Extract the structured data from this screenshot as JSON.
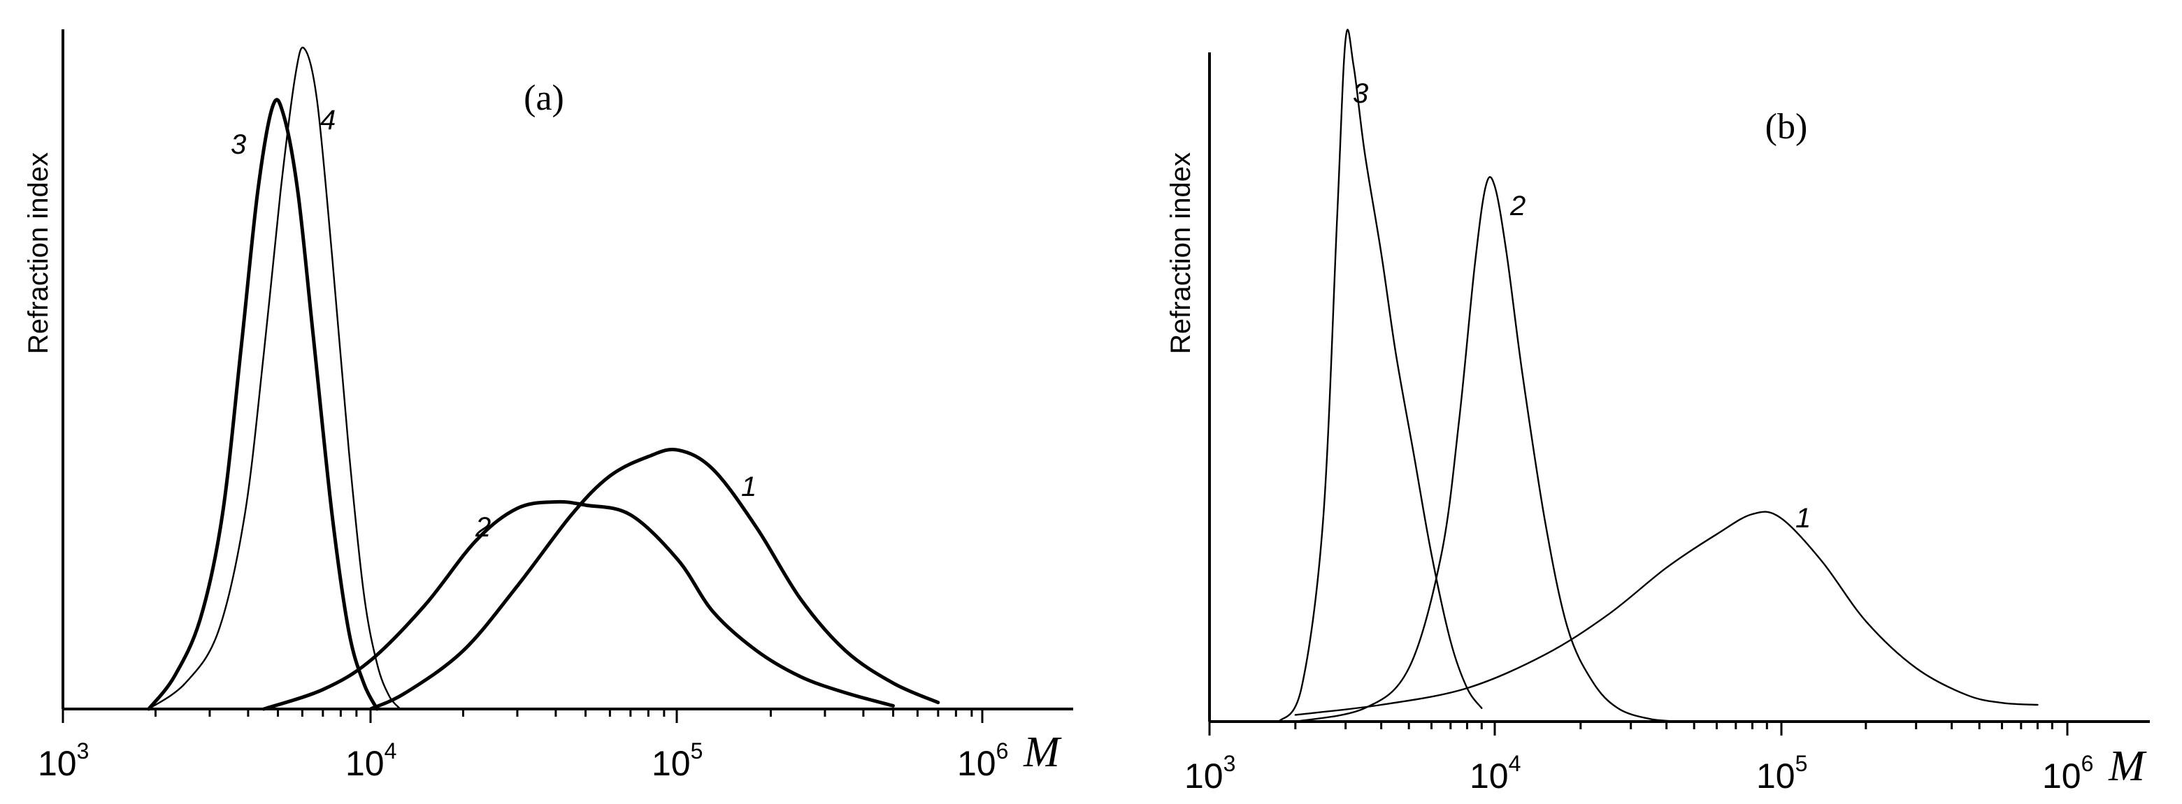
{
  "chart_data": [
    {
      "type": "line",
      "panel_label": "(a)",
      "ylabel": "Refraction index",
      "xlabel": "M",
      "xscale": "log",
      "xlim": [
        1000,
        2000000
      ],
      "ylim": [
        0,
        1.05
      ],
      "x_ticks": [
        {
          "base": "10",
          "exp": "3"
        },
        {
          "base": "10",
          "exp": "4"
        },
        {
          "base": "10",
          "exp": "5"
        },
        {
          "base": "10",
          "exp": "6"
        }
      ],
      "series": [
        {
          "name": "1",
          "weight": "bold",
          "x": [
            10000,
            13000,
            20000,
            30000,
            45000,
            60000,
            80000,
            100000,
            130000,
            180000,
            250000,
            350000,
            500000,
            700000
          ],
          "y": [
            0,
            0.025,
            0.09,
            0.19,
            0.3,
            0.36,
            0.39,
            0.4,
            0.37,
            0.28,
            0.17,
            0.09,
            0.04,
            0.01
          ]
        },
        {
          "name": "2",
          "weight": "bold",
          "x": [
            4500,
            7000,
            10000,
            15000,
            22000,
            30000,
            40000,
            50000,
            70000,
            100000,
            130000,
            180000,
            250000,
            350000,
            500000
          ],
          "y": [
            0,
            0.03,
            0.075,
            0.16,
            0.26,
            0.31,
            0.32,
            0.315,
            0.3,
            0.23,
            0.15,
            0.09,
            0.05,
            0.025,
            0.005
          ]
        },
        {
          "name": "3",
          "weight": "bold",
          "x": [
            1900,
            2300,
            2800,
            3300,
            3800,
            4300,
            4800,
            5200,
            5800,
            6500,
            7500,
            8500,
            9500,
            10500
          ],
          "y": [
            0,
            0.05,
            0.14,
            0.3,
            0.56,
            0.8,
            0.93,
            0.92,
            0.8,
            0.58,
            0.3,
            0.12,
            0.04,
            0
          ]
        },
        {
          "name": "4",
          "weight": "thin",
          "x": [
            1900,
            2500,
            3200,
            3900,
            4500,
            5100,
            5700,
            6100,
            6700,
            7500,
            8500,
            9500,
            10500,
            11500,
            12500
          ],
          "y": [
            0,
            0.04,
            0.12,
            0.3,
            0.55,
            0.8,
            0.98,
            1.02,
            0.94,
            0.7,
            0.4,
            0.18,
            0.07,
            0.02,
            0
          ]
        }
      ]
    },
    {
      "type": "line",
      "panel_label": "(b)",
      "ylabel": "Refraction index",
      "xlabel": "M",
      "xscale": "log",
      "xlim": [
        1000,
        2000000
      ],
      "ylim": [
        0,
        1.0
      ],
      "x_ticks": [
        {
          "base": "10",
          "exp": "3"
        },
        {
          "base": "10",
          "exp": "4"
        },
        {
          "base": "10",
          "exp": "5"
        },
        {
          "base": "10",
          "exp": "6"
        }
      ],
      "series": [
        {
          "name": "1",
          "weight": "thin",
          "x": [
            2000,
            4000,
            8000,
            15000,
            25000,
            40000,
            60000,
            80000,
            100000,
            140000,
            200000,
            300000,
            450000,
            600000,
            800000
          ],
          "y": [
            0.01,
            0.025,
            0.05,
            0.1,
            0.16,
            0.23,
            0.28,
            0.31,
            0.305,
            0.24,
            0.15,
            0.08,
            0.04,
            0.028,
            0.025
          ]
        },
        {
          "name": "2",
          "weight": "thin",
          "x": [
            2000,
            3500,
            5000,
            6500,
            7500,
            8500,
            9300,
            10000,
            11000,
            12500,
            15000,
            18000,
            22000,
            27000,
            35000,
            45000
          ],
          "y": [
            0,
            0.02,
            0.08,
            0.25,
            0.45,
            0.68,
            0.8,
            0.8,
            0.7,
            0.52,
            0.3,
            0.14,
            0.06,
            0.02,
            0.004,
            0
          ]
        },
        {
          "name": "3",
          "weight": "thin",
          "x": [
            1750,
            2100,
            2500,
            2800,
            3000,
            3200,
            3500,
            4000,
            4500,
            5200,
            6000,
            7000,
            8000,
            9000
          ],
          "y": [
            0,
            0.05,
            0.3,
            0.75,
            1.02,
            0.98,
            0.85,
            0.7,
            0.55,
            0.4,
            0.25,
            0.12,
            0.05,
            0.02
          ]
        }
      ]
    }
  ]
}
